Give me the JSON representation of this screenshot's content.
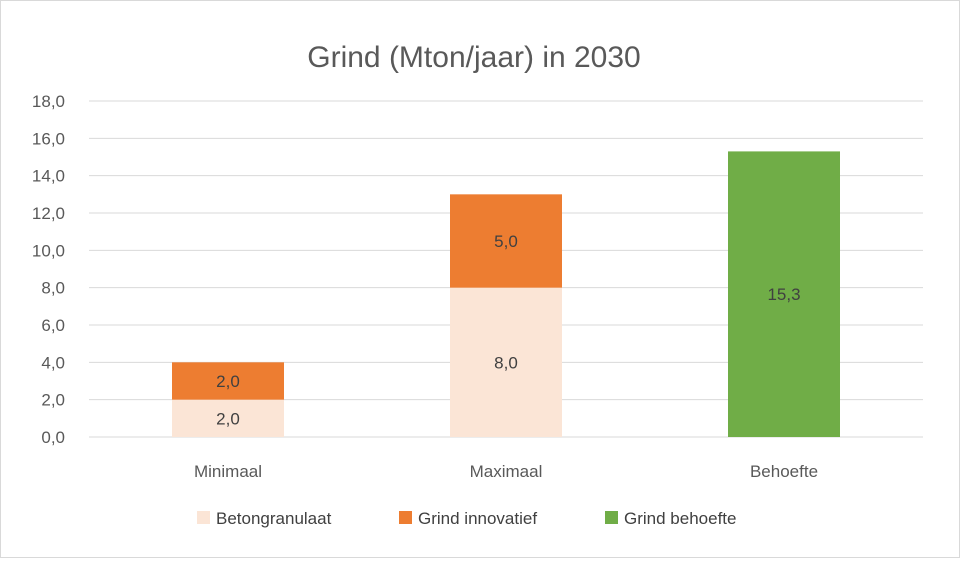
{
  "chart_data": {
    "type": "bar",
    "stacked": true,
    "title": "Grind (Mton/jaar) in 2030",
    "categories": [
      "Minimaal",
      "Maximaal",
      "Behoefte"
    ],
    "series": [
      {
        "name": "Betongranulaat",
        "values": [
          2.0,
          8.0,
          0
        ],
        "labels": [
          "2,0",
          "8,0",
          ""
        ],
        "color": "#fbe5d6"
      },
      {
        "name": "Grind innovatief",
        "values": [
          2.0,
          5.0,
          0
        ],
        "labels": [
          "2,0",
          "5,0",
          ""
        ],
        "color": "#ed7d31"
      },
      {
        "name": "Grind behoefte",
        "values": [
          0,
          0,
          15.3
        ],
        "labels": [
          "",
          "",
          "15,3"
        ],
        "color": "#70ad47"
      }
    ],
    "ylim": [
      0,
      18
    ],
    "yticks": [
      "0,0",
      "2,0",
      "4,0",
      "6,0",
      "8,0",
      "10,0",
      "12,0",
      "14,0",
      "16,0",
      "18,0"
    ],
    "grid": true,
    "legend": "bottom"
  }
}
